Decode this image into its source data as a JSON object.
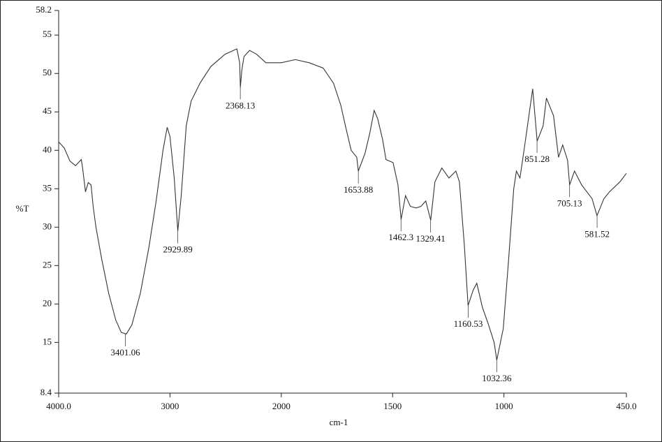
{
  "chart_data": {
    "type": "line",
    "x_label": "cm-1",
    "y_label": "%T",
    "xlim": [
      4000,
      450
    ],
    "ylim": [
      8.4,
      58.2
    ],
    "x_scale_break": 2000,
    "xticks": [
      {
        "value": 4000,
        "label": "4000.0"
      },
      3000,
      2000,
      1500,
      1000,
      {
        "value": 450,
        "label": "450.0"
      }
    ],
    "yticks": [
      8.4,
      15,
      20,
      25,
      30,
      35,
      40,
      45,
      50,
      55,
      58.2
    ],
    "series": [
      {
        "name": "%T",
        "color": "#333333",
        "x": [
          4000,
          3949,
          3899,
          3848,
          3797,
          3785,
          3759,
          3734,
          3709,
          3690,
          3665,
          3614,
          3551,
          3487,
          3437,
          3392,
          3342,
          3266,
          3190,
          3126,
          3063,
          3025,
          3000,
          2962,
          2930,
          2899,
          2854,
          2810,
          2728,
          2633,
          2506,
          2399,
          2374,
          2368,
          2354,
          2335,
          2285,
          2222,
          2139,
          2000,
          1937,
          1875,
          1812,
          1765,
          1733,
          1708,
          1686,
          1661,
          1654,
          1624,
          1602,
          1583,
          1567,
          1545,
          1530,
          1498,
          1476,
          1462,
          1442,
          1420,
          1395,
          1373,
          1351,
          1329,
          1310,
          1279,
          1247,
          1216,
          1200,
          1178,
          1161,
          1138,
          1122,
          1097,
          1069,
          1044,
          1032,
          1003,
          981,
          956,
          944,
          928,
          903,
          871,
          851,
          840,
          824,
          809,
          777,
          755,
          736,
          714,
          705,
          683,
          651,
          604,
          582,
          551,
          526,
          479,
          450
        ],
        "values": [
          41.1,
          40.3,
          38.6,
          38.0,
          38.8,
          37.7,
          34.6,
          35.8,
          35.5,
          32.7,
          30.0,
          25.9,
          21.4,
          17.9,
          16.3,
          16.1,
          17.3,
          21.4,
          27.3,
          33.2,
          40.0,
          43.0,
          41.8,
          36.4,
          29.5,
          34.1,
          43.2,
          46.4,
          48.8,
          50.9,
          52.5,
          53.2,
          51.4,
          48.2,
          50.5,
          52.2,
          53.0,
          52.5,
          51.4,
          51.4,
          51.8,
          51.4,
          50.7,
          48.7,
          45.9,
          42.7,
          40.0,
          39.1,
          37.3,
          39.6,
          42.3,
          45.2,
          44.1,
          41.4,
          38.8,
          38.4,
          35.5,
          31.0,
          34.1,
          32.7,
          32.5,
          32.7,
          33.4,
          30.9,
          35.9,
          37.7,
          36.4,
          37.3,
          35.9,
          27.7,
          19.8,
          21.8,
          22.7,
          19.6,
          17.3,
          15.0,
          12.7,
          16.8,
          25.0,
          35.0,
          37.3,
          36.4,
          41.4,
          48.0,
          41.2,
          42.0,
          43.2,
          46.8,
          44.5,
          39.1,
          40.7,
          38.7,
          35.5,
          37.3,
          35.5,
          33.7,
          31.5,
          33.7,
          34.6,
          35.9,
          37.0
        ]
      }
    ],
    "peaks": [
      3401.06,
      2929.89,
      2368.13,
      1653.88,
      1462.3,
      1329.41,
      1160.53,
      1032.36,
      851.28,
      705.13,
      581.52
    ]
  }
}
